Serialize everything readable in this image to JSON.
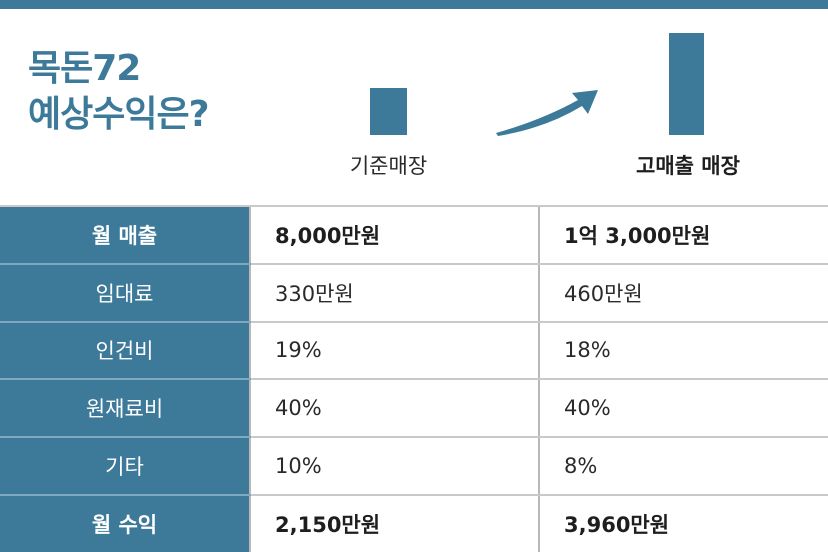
{
  "title": {
    "line1": "목돈72",
    "line2": "예상수익은?"
  },
  "chart": {
    "base_caption": "기준매장",
    "high_caption": "고매출 매장",
    "accent_color": "#3d7a9a",
    "arrow_icon": "curved-arrow-up-right"
  },
  "table": {
    "rows": [
      {
        "label": "월 매출",
        "base": "8,000만원",
        "high": "1억 3,000만원",
        "bold": true
      },
      {
        "label": "임대료",
        "base": "330만원",
        "high": "460만원",
        "bold": false
      },
      {
        "label": "인건비",
        "base": "19%",
        "high": "18%",
        "bold": false
      },
      {
        "label": "원재료비",
        "base": "40%",
        "high": "40%",
        "bold": false
      },
      {
        "label": "기타",
        "base": "10%",
        "high": "8%",
        "bold": false
      },
      {
        "label": "월 수익",
        "base": "2,150만원",
        "high": "3,960만원",
        "bold": true
      }
    ]
  }
}
